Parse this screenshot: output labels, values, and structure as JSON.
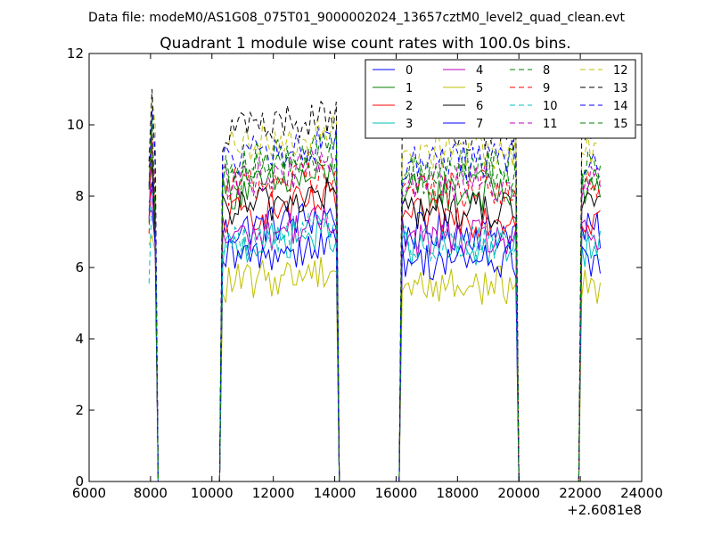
{
  "header": {
    "data_file": "Data file: modeM0/AS1G08_075T01_9000002024_13657cztM0_level2_quad_clean.evt"
  },
  "chart_data": {
    "type": "line",
    "title": "Quadrant 1 module wise count rates with 100.0s bins.",
    "xlabel": "",
    "ylabel": "",
    "x_offset_label": "+2.6081e8",
    "xlim": [
      6000,
      24000
    ],
    "ylim": [
      0,
      12
    ],
    "x_ticks": [
      6000,
      8000,
      10000,
      12000,
      14000,
      16000,
      18000,
      20000,
      22000,
      24000
    ],
    "y_ticks": [
      0,
      2,
      4,
      6,
      8,
      10,
      12
    ],
    "grid": false,
    "legend_position": "top-right",
    "segments": [
      [
        7950,
        8150
      ],
      [
        10350,
        14050
      ],
      [
        16200,
        19950
      ],
      [
        22050,
        22650
      ]
    ],
    "zero_ranges": [
      [
        8250,
        10250
      ],
      [
        14150,
        16100
      ],
      [
        20000,
        21950
      ]
    ],
    "series": [
      {
        "name": "0",
        "color": "#0000ff",
        "dash": "solid",
        "level": 7.0
      },
      {
        "name": "1",
        "color": "#008000",
        "dash": "solid",
        "level": 8.1
      },
      {
        "name": "2",
        "color": "#ff0000",
        "dash": "solid",
        "level": 7.4
      },
      {
        "name": "3",
        "color": "#00bfbf",
        "dash": "solid",
        "level": 6.5
      },
      {
        "name": "4",
        "color": "#bf00bf",
        "dash": "solid",
        "level": 6.8
      },
      {
        "name": "5",
        "color": "#bfbf00",
        "dash": "solid",
        "level": 5.5
      },
      {
        "name": "6",
        "color": "#000000",
        "dash": "solid",
        "level": 7.6
      },
      {
        "name": "7",
        "color": "#0000ff",
        "dash": "solid",
        "level": 6.2
      },
      {
        "name": "8",
        "color": "#008000",
        "dash": "dashed",
        "level": 8.6
      },
      {
        "name": "9",
        "color": "#ff0000",
        "dash": "dashed",
        "level": 8.2
      },
      {
        "name": "10",
        "color": "#00bfbf",
        "dash": "dashed",
        "level": 6.7
      },
      {
        "name": "11",
        "color": "#bf00bf",
        "dash": "dashed",
        "level": 8.4
      },
      {
        "name": "12",
        "color": "#bfbf00",
        "dash": "dashed",
        "level": 9.3
      },
      {
        "name": "13",
        "color": "#000000",
        "dash": "dashed",
        "level": 9.8
      },
      {
        "name": "14",
        "color": "#0000ff",
        "dash": "dashed",
        "level": 9.0
      },
      {
        "name": "15",
        "color": "#008000",
        "dash": "dashed",
        "level": 8.8
      }
    ]
  }
}
